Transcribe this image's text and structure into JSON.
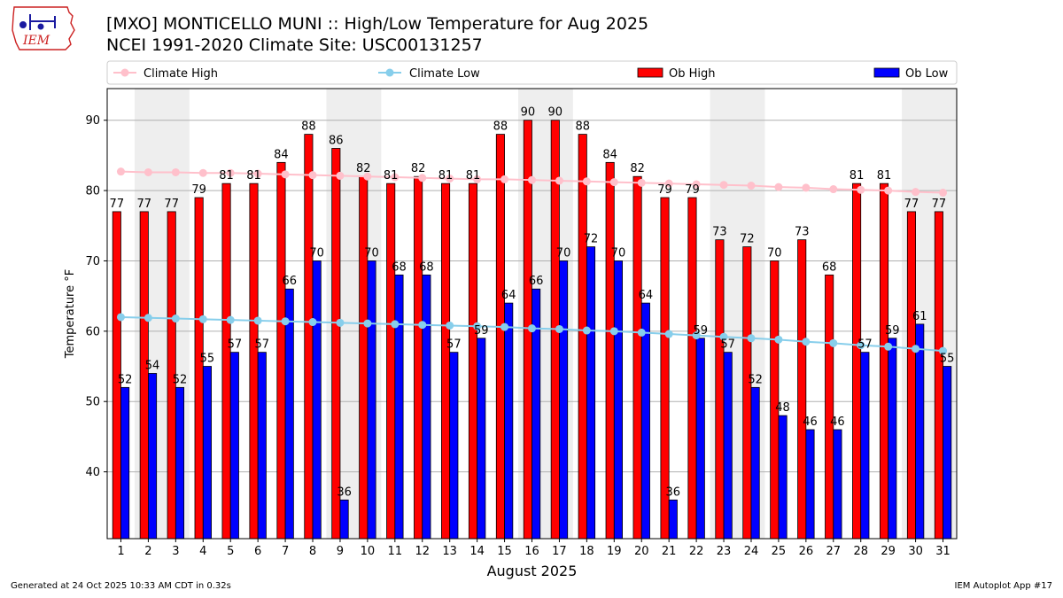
{
  "logo": {
    "text": "IEM"
  },
  "header": {
    "title": "[MXO] MONTICELLO MUNI :: High/Low Temperature for Aug 2025",
    "subtitle": "NCEI 1991-2020 Climate Site: USC00131257"
  },
  "footer": {
    "left": "Generated at 24 Oct 2025 10:33 AM CDT in 0.32s",
    "right": "IEM Autoplot App #17"
  },
  "colors": {
    "ob_high": "#ff0000",
    "ob_low": "#0000ff",
    "climate_high": "#ffc0cb",
    "climate_low": "#87ceeb",
    "weekend_shade": "#eeeeee"
  },
  "chart_data": {
    "type": "bar",
    "xlabel": "August 2025",
    "ylabel": "Temperature °F",
    "ylim": [
      30.5,
      94.5
    ],
    "yticks": [
      40,
      50,
      60,
      70,
      80,
      90
    ],
    "grid": true,
    "legend_position": "top",
    "legend": [
      "Climate High",
      "Climate Low",
      "Ob High",
      "Ob Low"
    ],
    "categories": [
      "1",
      "2",
      "3",
      "4",
      "5",
      "6",
      "7",
      "8",
      "9",
      "10",
      "11",
      "12",
      "13",
      "14",
      "15",
      "16",
      "17",
      "18",
      "19",
      "20",
      "21",
      "22",
      "23",
      "24",
      "25",
      "26",
      "27",
      "28",
      "29",
      "30",
      "31"
    ],
    "weekend_bands": [
      [
        2,
        3
      ],
      [
        9,
        10
      ],
      [
        16,
        17
      ],
      [
        23,
        24
      ],
      [
        30,
        31
      ]
    ],
    "series": [
      {
        "name": "Ob High",
        "kind": "bar",
        "values": [
          77,
          77,
          77,
          79,
          81,
          81,
          84,
          88,
          86,
          82,
          81,
          82,
          81,
          81,
          88,
          90,
          90,
          88,
          84,
          82,
          79,
          79,
          73,
          72,
          70,
          73,
          68,
          81,
          81,
          77,
          77
        ]
      },
      {
        "name": "Ob Low",
        "kind": "bar",
        "values": [
          52,
          54,
          52,
          55,
          57,
          57,
          66,
          70,
          36,
          70,
          68,
          68,
          57,
          59,
          64,
          66,
          70,
          72,
          70,
          64,
          36,
          59,
          57,
          52,
          48,
          46,
          46,
          57,
          59,
          61,
          55
        ]
      },
      {
        "name": "Climate High",
        "kind": "line",
        "values": [
          82.7,
          82.6,
          82.6,
          82.5,
          82.5,
          82.4,
          82.3,
          82.2,
          82.1,
          82.0,
          81.9,
          81.8,
          81.7,
          81.6,
          81.6,
          81.5,
          81.4,
          81.3,
          81.2,
          81.1,
          81.0,
          80.9,
          80.8,
          80.7,
          80.5,
          80.4,
          80.2,
          80.1,
          80.0,
          79.8,
          79.7
        ]
      },
      {
        "name": "Climate Low",
        "kind": "line",
        "values": [
          62.0,
          61.9,
          61.8,
          61.7,
          61.6,
          61.5,
          61.4,
          61.3,
          61.2,
          61.1,
          61.0,
          60.9,
          60.8,
          60.7,
          60.6,
          60.4,
          60.3,
          60.1,
          60.0,
          59.8,
          59.6,
          59.4,
          59.2,
          59.0,
          58.8,
          58.5,
          58.3,
          58.0,
          57.8,
          57.5,
          57.2
        ]
      }
    ]
  }
}
